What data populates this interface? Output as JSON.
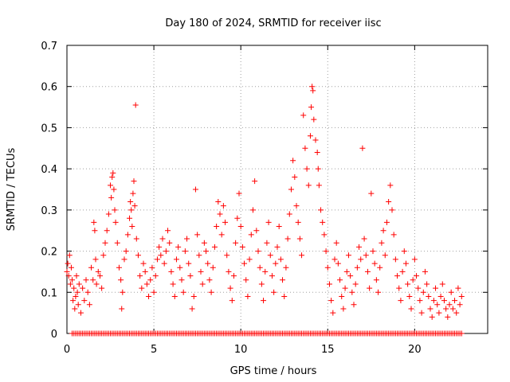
{
  "chart_data": {
    "type": "scatter",
    "title": "Day 180 of 2024, SRMTID for receiver iisc",
    "xlabel": "GPS time / hours",
    "ylabel": "SRMTID / TECUs",
    "xlim": [
      0,
      24.2
    ],
    "ylim": [
      0,
      0.7
    ],
    "xticks": [
      0,
      5,
      10,
      15,
      20
    ],
    "yticks": [
      0,
      0.1,
      0.2,
      0.3,
      0.4,
      0.5,
      0.6,
      0.7
    ],
    "xtick_labels": [
      "0",
      "5",
      "10",
      "15",
      "20"
    ],
    "ytick_labels": [
      "0",
      "0.1",
      "0.2",
      "0.3",
      "0.4",
      "0.5",
      "0.6",
      "0.7"
    ],
    "grid": true,
    "marker": "+",
    "series": [
      {
        "name": "SRMTID",
        "color": "#ff0000",
        "points": [
          [
            0.0,
            0.15
          ],
          [
            0.05,
            0.17
          ],
          [
            0.1,
            0.14
          ],
          [
            0.15,
            0.19
          ],
          [
            0.2,
            0.12
          ],
          [
            0.25,
            0.16
          ],
          [
            0.3,
            0.13
          ],
          [
            0.35,
            0.08
          ],
          [
            0.4,
            0.11
          ],
          [
            0.45,
            0.06
          ],
          [
            0.5,
            0.09
          ],
          [
            0.55,
            0.14
          ],
          [
            0.6,
            0.1
          ],
          [
            0.65,
            0.07
          ],
          [
            0.7,
            0.12
          ],
          [
            0.8,
            0.05
          ],
          [
            0.9,
            0.11
          ],
          [
            1.0,
            0.08
          ],
          [
            1.1,
            0.13
          ],
          [
            1.2,
            0.1
          ],
          [
            1.3,
            0.07
          ],
          [
            1.4,
            0.16
          ],
          [
            1.5,
            0.13
          ],
          [
            1.55,
            0.27
          ],
          [
            1.6,
            0.25
          ],
          [
            1.65,
            0.18
          ],
          [
            1.7,
            0.12
          ],
          [
            1.8,
            0.15
          ],
          [
            1.9,
            0.14
          ],
          [
            2.0,
            0.11
          ],
          [
            2.1,
            0.19
          ],
          [
            2.2,
            0.22
          ],
          [
            2.3,
            0.25
          ],
          [
            2.4,
            0.29
          ],
          [
            2.5,
            0.36
          ],
          [
            2.55,
            0.33
          ],
          [
            2.6,
            0.38
          ],
          [
            2.65,
            0.39
          ],
          [
            2.7,
            0.35
          ],
          [
            2.75,
            0.3
          ],
          [
            2.8,
            0.27
          ],
          [
            2.9,
            0.22
          ],
          [
            3.0,
            0.16
          ],
          [
            3.1,
            0.13
          ],
          [
            3.15,
            0.06
          ],
          [
            3.2,
            0.1
          ],
          [
            3.3,
            0.18
          ],
          [
            3.4,
            0.2
          ],
          [
            3.5,
            0.24
          ],
          [
            3.6,
            0.28
          ],
          [
            3.65,
            0.32
          ],
          [
            3.7,
            0.3
          ],
          [
            3.75,
            0.26
          ],
          [
            3.8,
            0.34
          ],
          [
            3.85,
            0.37
          ],
          [
            3.9,
            0.31
          ],
          [
            3.95,
            0.555
          ],
          [
            4.0,
            0.23
          ],
          [
            4.1,
            0.19
          ],
          [
            4.2,
            0.14
          ],
          [
            4.3,
            0.11
          ],
          [
            4.4,
            0.17
          ],
          [
            4.5,
            0.15
          ],
          [
            4.6,
            0.12
          ],
          [
            4.7,
            0.09
          ],
          [
            4.8,
            0.13
          ],
          [
            4.9,
            0.16
          ],
          [
            5.0,
            0.1
          ],
          [
            5.1,
            0.14
          ],
          [
            5.2,
            0.18
          ],
          [
            5.3,
            0.21
          ],
          [
            5.4,
            0.19
          ],
          [
            5.5,
            0.23
          ],
          [
            5.6,
            0.17
          ],
          [
            5.7,
            0.2
          ],
          [
            5.8,
            0.25
          ],
          [
            5.9,
            0.22
          ],
          [
            6.0,
            0.15
          ],
          [
            6.1,
            0.12
          ],
          [
            6.2,
            0.09
          ],
          [
            6.3,
            0.18
          ],
          [
            6.4,
            0.21
          ],
          [
            6.5,
            0.16
          ],
          [
            6.6,
            0.13
          ],
          [
            6.7,
            0.1
          ],
          [
            6.8,
            0.2
          ],
          [
            6.9,
            0.23
          ],
          [
            7.0,
            0.17
          ],
          [
            7.1,
            0.14
          ],
          [
            7.2,
            0.06
          ],
          [
            7.3,
            0.09
          ],
          [
            7.4,
            0.35
          ],
          [
            7.5,
            0.24
          ],
          [
            7.6,
            0.19
          ],
          [
            7.7,
            0.15
          ],
          [
            7.8,
            0.12
          ],
          [
            7.9,
            0.22
          ],
          [
            8.0,
            0.2
          ],
          [
            8.1,
            0.17
          ],
          [
            8.2,
            0.13
          ],
          [
            8.3,
            0.1
          ],
          [
            8.4,
            0.16
          ],
          [
            8.5,
            0.21
          ],
          [
            8.6,
            0.26
          ],
          [
            8.7,
            0.32
          ],
          [
            8.8,
            0.29
          ],
          [
            8.9,
            0.24
          ],
          [
            9.0,
            0.31
          ],
          [
            9.1,
            0.27
          ],
          [
            9.2,
            0.19
          ],
          [
            9.3,
            0.15
          ],
          [
            9.4,
            0.11
          ],
          [
            9.5,
            0.08
          ],
          [
            9.6,
            0.14
          ],
          [
            9.7,
            0.22
          ],
          [
            9.8,
            0.28
          ],
          [
            9.9,
            0.34
          ],
          [
            10.0,
            0.26
          ],
          [
            10.1,
            0.21
          ],
          [
            10.2,
            0.17
          ],
          [
            10.3,
            0.13
          ],
          [
            10.4,
            0.09
          ],
          [
            10.5,
            0.18
          ],
          [
            10.6,
            0.24
          ],
          [
            10.7,
            0.3
          ],
          [
            10.8,
            0.37
          ],
          [
            10.9,
            0.25
          ],
          [
            11.0,
            0.2
          ],
          [
            11.1,
            0.16
          ],
          [
            11.2,
            0.12
          ],
          [
            11.3,
            0.08
          ],
          [
            11.4,
            0.15
          ],
          [
            11.5,
            0.22
          ],
          [
            11.6,
            0.27
          ],
          [
            11.7,
            0.19
          ],
          [
            11.8,
            0.14
          ],
          [
            11.9,
            0.1
          ],
          [
            12.0,
            0.17
          ],
          [
            12.1,
            0.21
          ],
          [
            12.2,
            0.26
          ],
          [
            12.3,
            0.18
          ],
          [
            12.4,
            0.13
          ],
          [
            12.5,
            0.09
          ],
          [
            12.6,
            0.16
          ],
          [
            12.7,
            0.23
          ],
          [
            12.8,
            0.29
          ],
          [
            12.9,
            0.35
          ],
          [
            13.0,
            0.42
          ],
          [
            13.1,
            0.38
          ],
          [
            13.2,
            0.31
          ],
          [
            13.3,
            0.27
          ],
          [
            13.4,
            0.23
          ],
          [
            13.5,
            0.19
          ],
          [
            13.6,
            0.53
          ],
          [
            13.7,
            0.45
          ],
          [
            13.8,
            0.4
          ],
          [
            13.9,
            0.36
          ],
          [
            14.0,
            0.48
          ],
          [
            14.05,
            0.55
          ],
          [
            14.1,
            0.6
          ],
          [
            14.15,
            0.59
          ],
          [
            14.2,
            0.52
          ],
          [
            14.3,
            0.47
          ],
          [
            14.4,
            0.44
          ],
          [
            14.45,
            0.4
          ],
          [
            14.5,
            0.36
          ],
          [
            14.6,
            0.3
          ],
          [
            14.7,
            0.27
          ],
          [
            14.8,
            0.24
          ],
          [
            14.9,
            0.2
          ],
          [
            15.0,
            0.16
          ],
          [
            15.1,
            0.12
          ],
          [
            15.2,
            0.08
          ],
          [
            15.3,
            0.05
          ],
          [
            15.4,
            0.18
          ],
          [
            15.5,
            0.22
          ],
          [
            15.6,
            0.17
          ],
          [
            15.7,
            0.13
          ],
          [
            15.8,
            0.09
          ],
          [
            15.9,
            0.06
          ],
          [
            16.0,
            0.11
          ],
          [
            16.1,
            0.15
          ],
          [
            16.2,
            0.19
          ],
          [
            16.3,
            0.14
          ],
          [
            16.4,
            0.1
          ],
          [
            16.5,
            0.07
          ],
          [
            16.6,
            0.12
          ],
          [
            16.7,
            0.16
          ],
          [
            16.8,
            0.21
          ],
          [
            16.9,
            0.18
          ],
          [
            17.0,
            0.45
          ],
          [
            17.1,
            0.23
          ],
          [
            17.2,
            0.19
          ],
          [
            17.3,
            0.15
          ],
          [
            17.4,
            0.11
          ],
          [
            17.5,
            0.34
          ],
          [
            17.6,
            0.2
          ],
          [
            17.7,
            0.17
          ],
          [
            17.8,
            0.13
          ],
          [
            17.9,
            0.1
          ],
          [
            18.0,
            0.16
          ],
          [
            18.1,
            0.22
          ],
          [
            18.2,
            0.25
          ],
          [
            18.3,
            0.19
          ],
          [
            18.4,
            0.27
          ],
          [
            18.5,
            0.32
          ],
          [
            18.6,
            0.36
          ],
          [
            18.7,
            0.3
          ],
          [
            18.8,
            0.24
          ],
          [
            18.9,
            0.18
          ],
          [
            19.0,
            0.14
          ],
          [
            19.1,
            0.11
          ],
          [
            19.2,
            0.08
          ],
          [
            19.3,
            0.15
          ],
          [
            19.4,
            0.2
          ],
          [
            19.5,
            0.17
          ],
          [
            19.6,
            0.12
          ],
          [
            19.7,
            0.09
          ],
          [
            19.8,
            0.06
          ],
          [
            19.9,
            0.13
          ],
          [
            20.0,
            0.18
          ],
          [
            20.1,
            0.14
          ],
          [
            20.2,
            0.11
          ],
          [
            20.3,
            0.08
          ],
          [
            20.4,
            0.05
          ],
          [
            20.5,
            0.1
          ],
          [
            20.6,
            0.15
          ],
          [
            20.7,
            0.12
          ],
          [
            20.8,
            0.09
          ],
          [
            20.9,
            0.06
          ],
          [
            21.0,
            0.04
          ],
          [
            21.1,
            0.08
          ],
          [
            21.2,
            0.11
          ],
          [
            21.3,
            0.07
          ],
          [
            21.4,
            0.05
          ],
          [
            21.5,
            0.09
          ],
          [
            21.6,
            0.12
          ],
          [
            21.7,
            0.08
          ],
          [
            21.8,
            0.06
          ],
          [
            21.9,
            0.04
          ],
          [
            22.0,
            0.07
          ],
          [
            22.1,
            0.1
          ],
          [
            22.2,
            0.06
          ],
          [
            22.3,
            0.08
          ],
          [
            22.4,
            0.05
          ],
          [
            22.5,
            0.11
          ],
          [
            22.6,
            0.07
          ],
          [
            22.7,
            0.09
          ]
        ]
      }
    ],
    "zero_points": {
      "description": "dense row of markers at SRMTID = 0",
      "x_start": 0.3,
      "x_end": 22.7,
      "x_step": 0.1,
      "y": 0
    }
  }
}
